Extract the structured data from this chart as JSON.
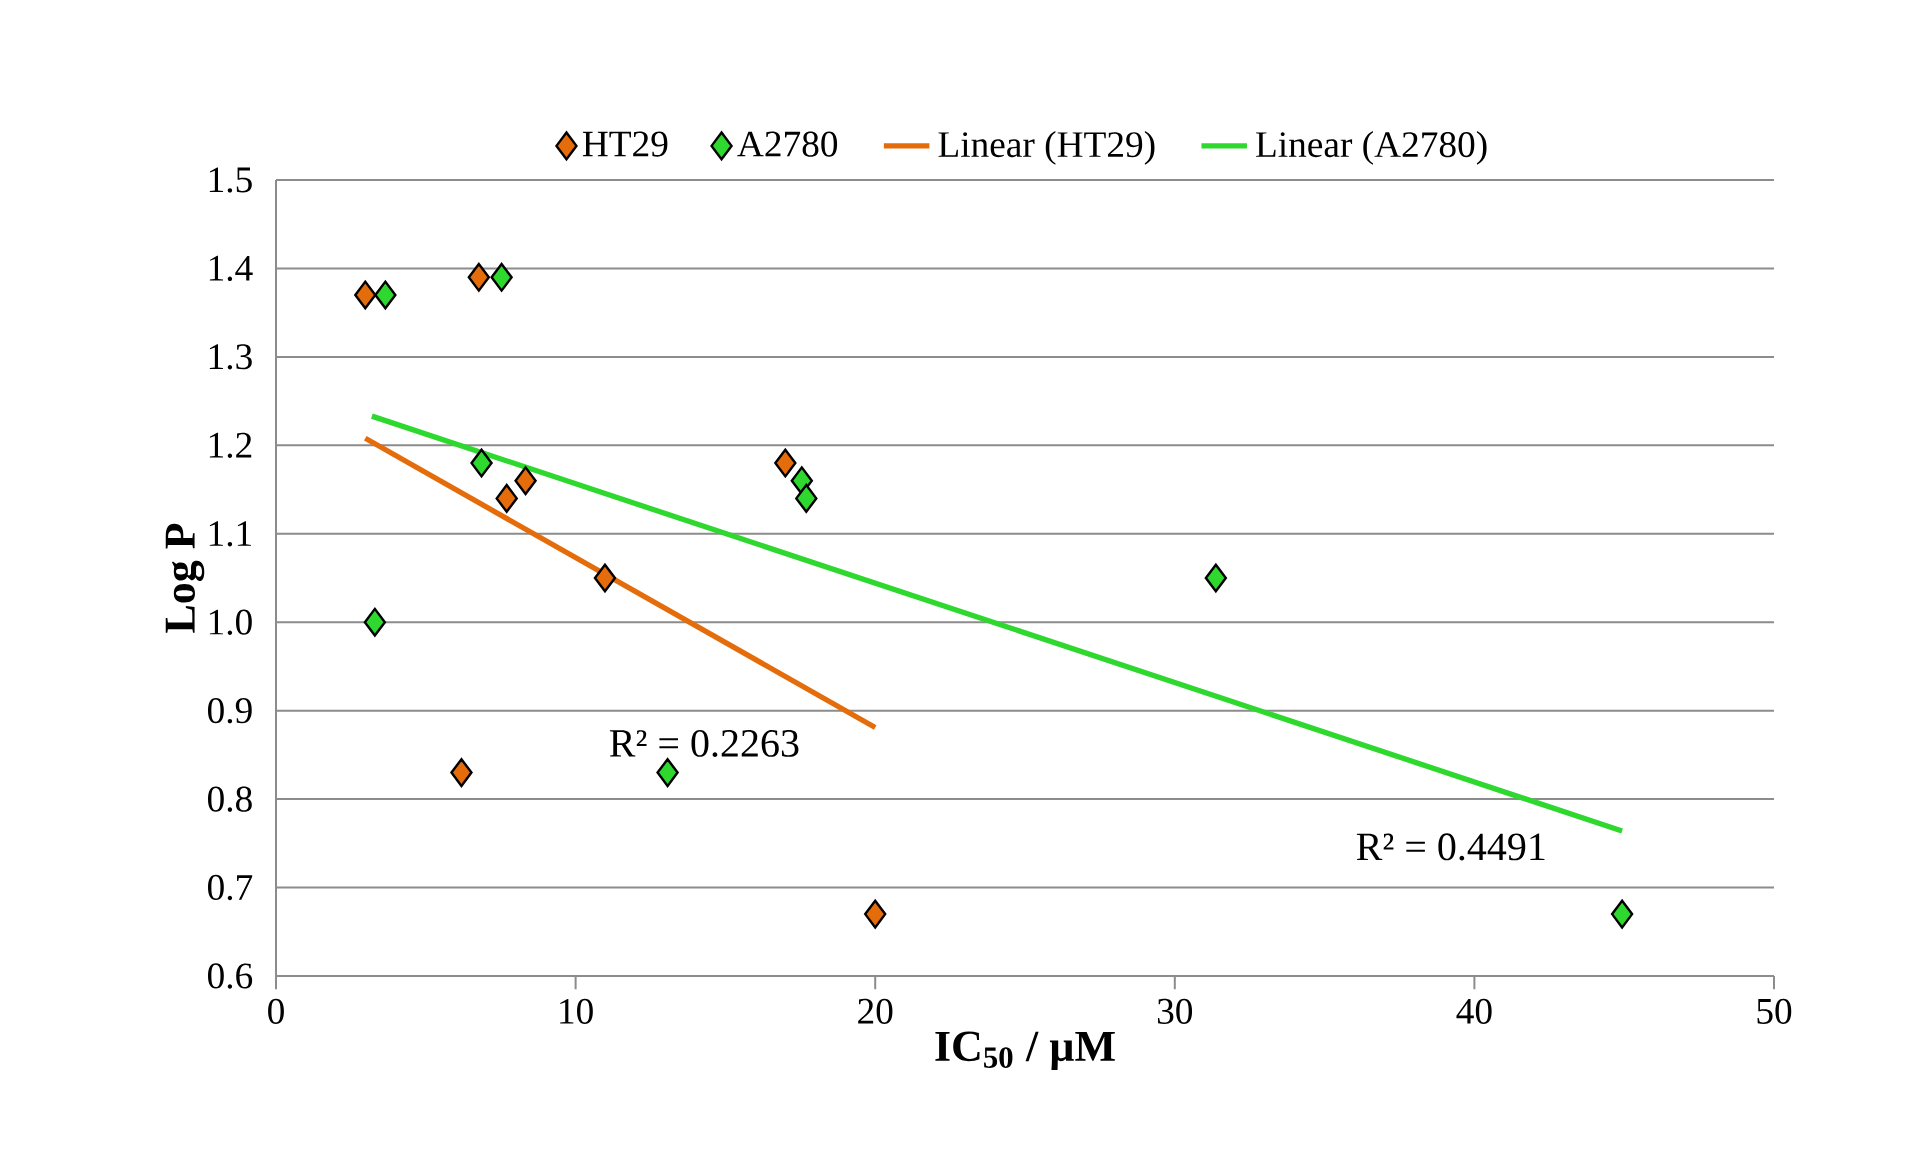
{
  "chart_data": {
    "type": "scatter",
    "xlabel": "IC$_{50}$ / µM",
    "ylabel": "Log P",
    "xlim": [
      0,
      50
    ],
    "ylim": [
      0.6,
      1.5
    ],
    "xticks": [
      0,
      10,
      20,
      30,
      40,
      50
    ],
    "yticks": [
      {
        "value": 0.6,
        "label": "0.6"
      },
      {
        "value": 0.7,
        "label": "0.7"
      },
      {
        "value": 0.8,
        "label": "0.8"
      },
      {
        "value": 0.9,
        "label": "0.9"
      },
      {
        "value": 1.0,
        "label": "1.0"
      },
      {
        "value": 1.1,
        "label": "1.1"
      },
      {
        "value": 1.2,
        "label": "1.2"
      },
      {
        "value": 1.3,
        "label": "1.3"
      },
      {
        "value": 1.4,
        "label": "1.4"
      },
      {
        "value": 1.5,
        "label": "1.5"
      }
    ],
    "grid": "y",
    "legend": "top",
    "series": [
      {
        "name": "HT29",
        "color": "#e46c0a",
        "marker": "diamond",
        "x": [
          2.98,
          6.77,
          7.7,
          8.33,
          10.98,
          17.0,
          6.19,
          20.0
        ],
        "values": [
          1.37,
          1.39,
          1.14,
          1.16,
          1.05,
          1.18,
          0.83,
          0.67
        ]
      },
      {
        "name": "A2780",
        "color": "#2ed82e",
        "marker": "diamond",
        "x": [
          3.65,
          7.53,
          6.86,
          3.3,
          17.55,
          17.7,
          13.07,
          31.37,
          44.93
        ],
        "values": [
          1.37,
          1.39,
          1.18,
          1.0,
          1.16,
          1.14,
          0.83,
          1.05,
          0.67
        ]
      },
      {
        "name": "Linear (HT29)",
        "type": "line",
        "marker": "none",
        "color": "#e46c0a",
        "x": [
          2.98,
          20.0
        ],
        "values": [
          1.208,
          0.881
        ]
      },
      {
        "name": "Linear (A2780)",
        "type": "line",
        "marker": "none",
        "color": "#2ed82e",
        "x": [
          3.2,
          44.93
        ],
        "values": [
          1.233,
          0.764
        ]
      }
    ],
    "annotations": [
      "R² = 0.2263",
      "R² = 0.4491"
    ]
  }
}
